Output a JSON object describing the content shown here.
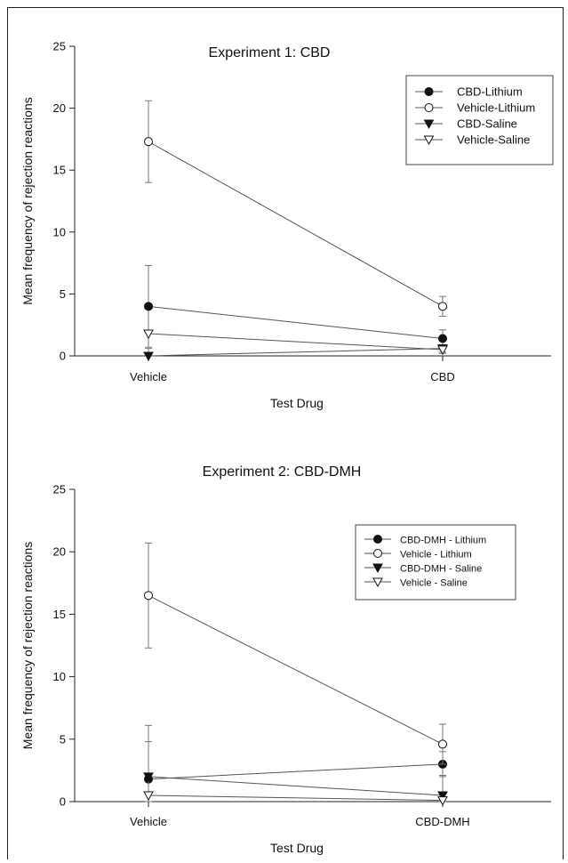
{
  "chart_data": [
    {
      "type": "line",
      "title": "Experiment 1:  CBD",
      "xlabel": "Test Drug",
      "ylabel": "Mean frequency of rejection reactions",
      "categories": [
        "Vehicle",
        "CBD"
      ],
      "ylim": [
        0,
        25
      ],
      "yticks": [
        "0",
        "5",
        "10",
        "15",
        "20",
        "25"
      ],
      "legend_position": "top-right",
      "series": [
        {
          "name": "CBD-Lithium",
          "marker": "filled-circle",
          "values": [
            4.0,
            1.4
          ],
          "errors": [
            3.3,
            0.7
          ]
        },
        {
          "name": "Vehicle-Lithium",
          "marker": "open-circle",
          "values": [
            17.3,
            4.0
          ],
          "errors": [
            3.3,
            0.8
          ]
        },
        {
          "name": "CBD-Saline",
          "marker": "filled-triangle",
          "values": [
            0.0,
            0.6
          ],
          "errors": [
            0.6,
            0.3
          ]
        },
        {
          "name": "Vehicle-Saline",
          "marker": "open-triangle",
          "values": [
            1.8,
            0.5
          ],
          "errors": [
            0.0,
            0.3
          ]
        }
      ]
    },
    {
      "type": "line",
      "title": "Experiment 2:  CBD-DMH",
      "xlabel": "Test Drug",
      "ylabel": "Mean frequency of rejection reactions",
      "categories": [
        "Vehicle",
        "CBD-DMH"
      ],
      "ylim": [
        0,
        25
      ],
      "yticks": [
        "0",
        "5",
        "10",
        "15",
        "20",
        "25"
      ],
      "legend_position": "top-right",
      "series": [
        {
          "name": "CBD-DMH - Lithium",
          "marker": "filled-circle",
          "values": [
            1.8,
            3.0
          ],
          "errors": [
            4.3,
            1.0
          ]
        },
        {
          "name": "Vehicle - Lithium",
          "marker": "open-circle",
          "values": [
            16.5,
            4.6
          ],
          "errors": [
            4.2,
            1.6
          ]
        },
        {
          "name": "CBD-DMH - Saline",
          "marker": "filled-triangle",
          "values": [
            2.0,
            0.5
          ],
          "errors": [
            2.8,
            1.6
          ]
        },
        {
          "name": "Vehicle - Saline",
          "marker": "open-triangle",
          "values": [
            0.5,
            0.1
          ],
          "errors": [
            0.0,
            0.2
          ]
        }
      ]
    }
  ]
}
